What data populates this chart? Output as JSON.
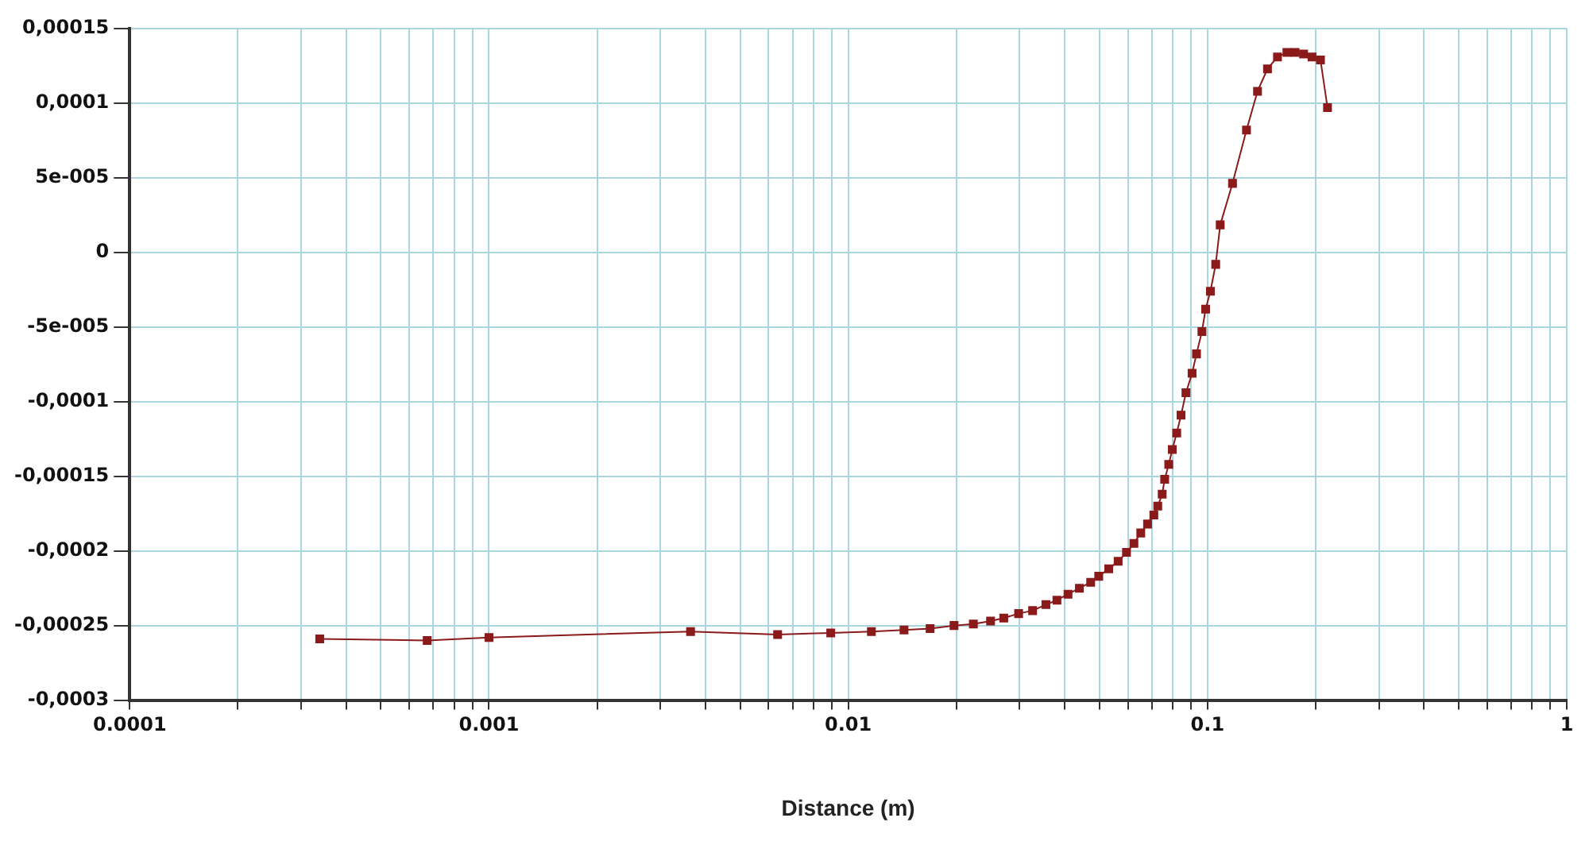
{
  "chart_data": {
    "type": "line",
    "xlabel": "Distance (m)",
    "x": [
      0.000338,
      0.000673,
      0.001,
      0.00364,
      0.00636,
      0.00894,
      0.0116,
      0.0143,
      0.0169,
      0.0197,
      0.0223,
      0.0249,
      0.0271,
      0.0298,
      0.0326,
      0.0355,
      0.0381,
      0.0409,
      0.044,
      0.0473,
      0.0498,
      0.0531,
      0.0564,
      0.0595,
      0.0624,
      0.0652,
      0.0681,
      0.0709,
      0.0727,
      0.0748,
      0.076,
      0.078,
      0.0798,
      0.0821,
      0.0844,
      0.0871,
      0.0906,
      0.0932,
      0.0965,
      0.0988,
      0.1019,
      0.1054,
      0.1085,
      0.1174,
      0.1284,
      0.1378,
      0.1469,
      0.1566,
      0.1664,
      0.1753,
      0.1851,
      0.1954,
      0.2063,
      0.2158
    ],
    "series": [
      {
        "color": "#8b1a1a",
        "values": [
          -0.000259,
          -0.00026,
          -0.000258,
          -0.000254,
          -0.000256,
          -0.000255,
          -0.000254,
          -0.000253,
          -0.000252,
          -0.00025,
          -0.000249,
          -0.000247,
          -0.000245,
          -0.000242,
          -0.00024,
          -0.000236,
          -0.000233,
          -0.000229,
          -0.000225,
          -0.000221,
          -0.000217,
          -0.000212,
          -0.000207,
          -0.000201,
          -0.000195,
          -0.000188,
          -0.000182,
          -0.000176,
          -0.00017,
          -0.000162,
          -0.000152,
          -0.000142,
          -0.000132,
          -0.000121,
          -0.000109,
          -9.4e-05,
          -8.1e-05,
          -6.8e-05,
          -5.3e-05,
          -3.8e-05,
          -2.6e-05,
          -8e-06,
          1.85e-05,
          4.63e-05,
          8.2e-05,
          0.000108,
          0.000123,
          0.000131,
          0.000134,
          0.000134,
          0.000133,
          0.000131,
          0.000129,
          9.7e-05
        ]
      }
    ],
    "log": "x",
    "xlim": [
      0.0001,
      1
    ],
    "ylim": [
      -0.0003,
      0.00015
    ],
    "xticks": [
      {
        "value": 0.0001,
        "label": "0.0001"
      },
      {
        "value": 0.0002,
        "label": null
      },
      {
        "value": 0.0003,
        "label": null
      },
      {
        "value": 0.0004,
        "label": null
      },
      {
        "value": 0.0005,
        "label": null
      },
      {
        "value": 0.0006,
        "label": null
      },
      {
        "value": 0.0007,
        "label": null
      },
      {
        "value": 0.0008,
        "label": null
      },
      {
        "value": 0.0009,
        "label": null
      },
      {
        "value": 0.001,
        "label": "0.001"
      },
      {
        "value": 0.002,
        "label": null
      },
      {
        "value": 0.003,
        "label": null
      },
      {
        "value": 0.004,
        "label": null
      },
      {
        "value": 0.005,
        "label": null
      },
      {
        "value": 0.006,
        "label": null
      },
      {
        "value": 0.007,
        "label": null
      },
      {
        "value": 0.008,
        "label": null
      },
      {
        "value": 0.009,
        "label": null
      },
      {
        "value": 0.01,
        "label": "0.01"
      },
      {
        "value": 0.02,
        "label": null
      },
      {
        "value": 0.03,
        "label": null
      },
      {
        "value": 0.04,
        "label": null
      },
      {
        "value": 0.05,
        "label": null
      },
      {
        "value": 0.06,
        "label": null
      },
      {
        "value": 0.07,
        "label": null
      },
      {
        "value": 0.08,
        "label": null
      },
      {
        "value": 0.09,
        "label": null
      },
      {
        "value": 0.1,
        "label": "0.1"
      },
      {
        "value": 0.2,
        "label": null
      },
      {
        "value": 0.3,
        "label": null
      },
      {
        "value": 0.4,
        "label": null
      },
      {
        "value": 0.5,
        "label": null
      },
      {
        "value": 0.6,
        "label": null
      },
      {
        "value": 0.7,
        "label": null
      },
      {
        "value": 0.8,
        "label": null
      },
      {
        "value": 0.9,
        "label": null
      },
      {
        "value": 1,
        "label": "1"
      }
    ],
    "yticks": [
      {
        "value": -0.0003,
        "label": "-0,0003"
      },
      {
        "value": -0.00025,
        "label": "-0,00025"
      },
      {
        "value": -0.0002,
        "label": "-0,0002"
      },
      {
        "value": -0.00015,
        "label": "-0,00015"
      },
      {
        "value": -0.0001,
        "label": "-0,0001"
      },
      {
        "value": -5e-05,
        "label": "-5e-005"
      },
      {
        "value": 0,
        "label": "0"
      },
      {
        "value": 5e-05,
        "label": "5e-005"
      },
      {
        "value": 0.0001,
        "label": "0,0001"
      },
      {
        "value": 0.00015,
        "label": "0,00015"
      }
    ],
    "grid": true,
    "marker": "square",
    "line_style": "solid",
    "legend": false
  }
}
